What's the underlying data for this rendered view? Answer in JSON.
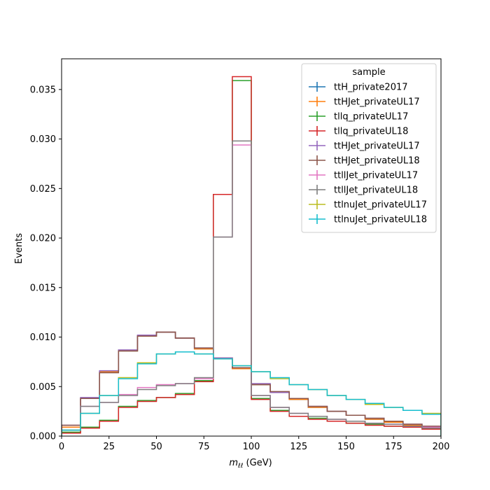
{
  "chart_data": {
    "type": "line",
    "style": "step-histogram",
    "xlabel_main": "m",
    "xlabel_sub": "ℓℓ",
    "xlabel_unit": " (GeV)",
    "ylabel": "Events",
    "xlim": [
      0,
      200
    ],
    "ylim": [
      0,
      0.0381
    ],
    "xticks": [
      0,
      25,
      50,
      75,
      100,
      125,
      150,
      175,
      200
    ],
    "yticks": [
      0.0,
      0.005,
      0.01,
      0.015,
      0.02,
      0.025,
      0.03,
      0.035
    ],
    "xtick_labels": [
      "0",
      "25",
      "50",
      "75",
      "100",
      "125",
      "150",
      "175",
      "200"
    ],
    "ytick_labels": [
      "0.000",
      "0.005",
      "0.010",
      "0.015",
      "0.020",
      "0.025",
      "0.030",
      "0.035"
    ],
    "bin_edges": [
      0,
      10,
      20,
      30,
      40,
      50,
      60,
      70,
      80,
      90,
      100,
      110,
      120,
      130,
      140,
      150,
      160,
      170,
      180,
      190,
      200
    ],
    "grid": false,
    "legend": {
      "title": "sample",
      "placement": "top-right"
    },
    "series": [
      {
        "name": "ttH_private2017",
        "color": "#1f77b4",
        "values": [
          0.0009,
          0.0038,
          0.0065,
          0.0086,
          0.0101,
          0.0105,
          0.0099,
          0.0088,
          0.0079,
          0.0068,
          0.0052,
          0.0044,
          0.0037,
          0.0029,
          0.0025,
          0.0021,
          0.0017,
          0.0014,
          0.0011,
          0.0009
        ]
      },
      {
        "name": "ttHJet_privateUL17",
        "color": "#ff7f0e",
        "values": [
          0.0009,
          0.0038,
          0.0065,
          0.0086,
          0.0101,
          0.0105,
          0.0099,
          0.0088,
          0.0079,
          0.0068,
          0.0052,
          0.0044,
          0.0037,
          0.0029,
          0.0025,
          0.0021,
          0.0017,
          0.0014,
          0.0011,
          0.0009
        ]
      },
      {
        "name": "tllq_privateUL17",
        "color": "#2ca02c",
        "values": [
          0.0004,
          0.0009,
          0.0016,
          0.003,
          0.0036,
          0.0039,
          0.0043,
          0.0056,
          0.0244,
          0.0359,
          0.0038,
          0.0026,
          0.002,
          0.0018,
          0.0015,
          0.0013,
          0.0012,
          0.001,
          0.0009,
          0.0008
        ]
      },
      {
        "name": "tllq_privateUL18",
        "color": "#d62728",
        "values": [
          0.0003,
          0.0008,
          0.0015,
          0.0029,
          0.0035,
          0.0039,
          0.0042,
          0.0055,
          0.0244,
          0.0363,
          0.0037,
          0.0025,
          0.002,
          0.0017,
          0.0015,
          0.0013,
          0.0011,
          0.001,
          0.0009,
          0.0007
        ]
      },
      {
        "name": "ttHJet_privateUL17",
        "color": "#9467bd",
        "values": [
          0.0011,
          0.0039,
          0.0066,
          0.0087,
          0.0102,
          0.0105,
          0.0099,
          0.0089,
          0.0079,
          0.0069,
          0.0053,
          0.0044,
          0.0038,
          0.003,
          0.0025,
          0.0021,
          0.0018,
          0.0015,
          0.0012,
          0.001
        ]
      },
      {
        "name": "ttHJet_privateUL18",
        "color": "#8c564b",
        "values": [
          0.0011,
          0.0038,
          0.0064,
          0.0086,
          0.0101,
          0.0105,
          0.0099,
          0.0089,
          0.0078,
          0.0069,
          0.0052,
          0.0045,
          0.0038,
          0.003,
          0.0025,
          0.0021,
          0.0018,
          0.0015,
          0.0012,
          0.001
        ]
      },
      {
        "name": "ttllJet_privateUL17",
        "color": "#e377c2",
        "values": [
          0.0006,
          0.003,
          0.0034,
          0.0042,
          0.0049,
          0.0052,
          0.0053,
          0.0058,
          0.0201,
          0.0294,
          0.0041,
          0.0029,
          0.0023,
          0.002,
          0.0017,
          0.0015,
          0.0013,
          0.0012,
          0.001,
          0.0009
        ]
      },
      {
        "name": "ttllJet_privateUL18",
        "color": "#7f7f7f",
        "values": [
          0.0006,
          0.003,
          0.0034,
          0.0041,
          0.0047,
          0.0051,
          0.0053,
          0.0059,
          0.0201,
          0.0298,
          0.0041,
          0.0029,
          0.0023,
          0.002,
          0.0017,
          0.0015,
          0.0013,
          0.0012,
          0.001,
          0.0008
        ]
      },
      {
        "name": "ttlnuJet_privateUL17",
        "color": "#bcbd22",
        "values": [
          0.0006,
          0.0023,
          0.0041,
          0.0059,
          0.0074,
          0.0083,
          0.0085,
          0.0083,
          0.0078,
          0.0071,
          0.0065,
          0.0058,
          0.0052,
          0.0047,
          0.0041,
          0.0037,
          0.0032,
          0.0029,
          0.0026,
          0.0023
        ]
      },
      {
        "name": "ttlnuJet_privateUL18",
        "color": "#17becf",
        "values": [
          0.0006,
          0.0023,
          0.0041,
          0.0058,
          0.0073,
          0.0083,
          0.0085,
          0.0083,
          0.0078,
          0.0071,
          0.0065,
          0.0059,
          0.0052,
          0.0047,
          0.0041,
          0.0037,
          0.0033,
          0.0029,
          0.0026,
          0.0022
        ]
      }
    ]
  }
}
